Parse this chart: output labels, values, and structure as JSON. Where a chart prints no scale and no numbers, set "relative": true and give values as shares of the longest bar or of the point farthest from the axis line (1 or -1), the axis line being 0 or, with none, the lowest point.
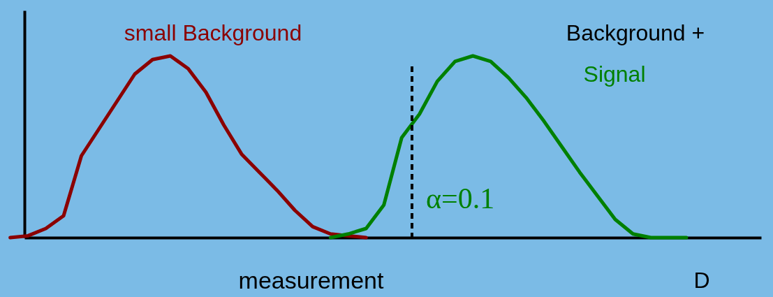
{
  "chart_data": {
    "type": "line",
    "relative": true,
    "xlabel": "measurement",
    "tick_labels": false,
    "grid": false,
    "line_style": "solid",
    "categories": [
      null,
      null,
      null,
      null,
      null,
      null,
      null,
      null,
      null,
      null,
      null,
      null,
      null,
      null,
      null,
      null,
      null,
      null,
      null,
      null,
      null,
      null,
      null,
      null,
      null,
      null,
      null,
      null,
      null,
      null,
      null,
      null,
      null,
      null,
      null,
      null,
      null,
      null,
      null
    ],
    "series": [
      {
        "name": "small Background",
        "color": "#8b0000",
        "values": [
          0,
          0.01,
          0.05,
          0.12,
          0.45,
          0.6,
          0.75,
          0.9,
          0.98,
          1,
          0.93,
          0.8,
          0.62,
          0.46,
          0.36,
          0.26,
          0.15,
          0.06,
          0.02,
          0.01,
          0,
          null,
          null,
          null,
          null,
          null,
          null,
          null,
          null,
          null,
          null,
          null,
          null,
          null,
          null,
          null,
          null,
          null,
          null
        ]
      },
      {
        "name": "Signal",
        "color": "#008000",
        "values": [
          null,
          null,
          null,
          null,
          null,
          null,
          null,
          null,
          null,
          null,
          null,
          null,
          null,
          null,
          null,
          null,
          null,
          null,
          0,
          0.02,
          0.05,
          0.18,
          0.55,
          0.68,
          0.86,
          0.97,
          1,
          0.97,
          0.88,
          0.77,
          0.64,
          0.5,
          0.36,
          0.23,
          0.1,
          0.02,
          0,
          0,
          0
        ]
      }
    ],
    "annotations": [
      "Background +",
      "D",
      "α=0.1"
    ]
  }
}
